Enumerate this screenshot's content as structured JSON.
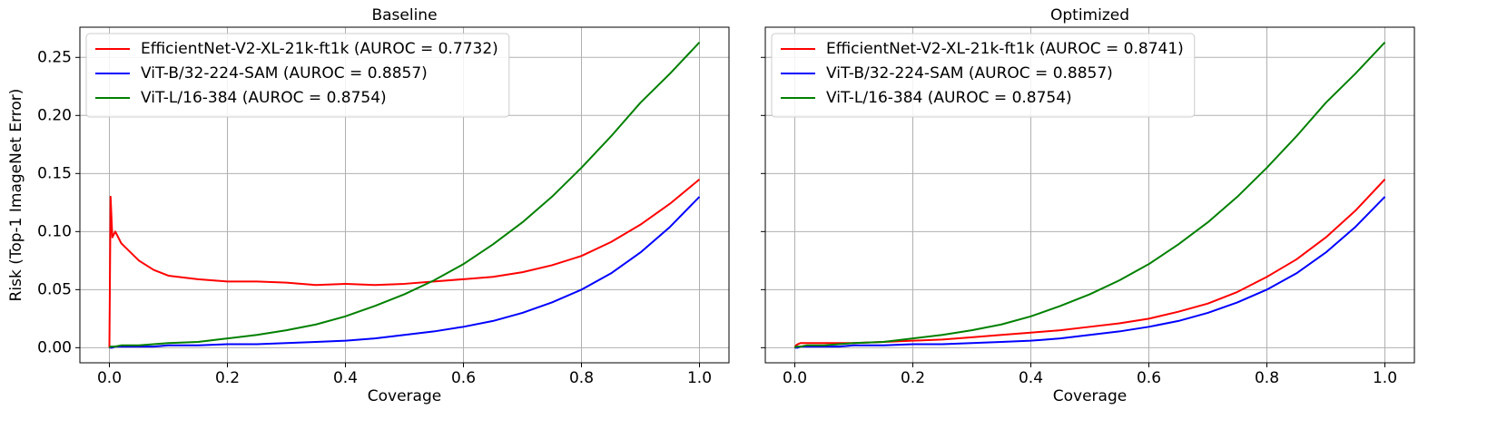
{
  "chart_data": [
    {
      "type": "line",
      "title": "Baseline",
      "xlabel": "Coverage",
      "ylabel": "Risk (Top-1 ImageNet Error)",
      "x": [
        0,
        0.002,
        0.005,
        0.01,
        0.02,
        0.03,
        0.05,
        0.075,
        0.1,
        0.15,
        0.2,
        0.25,
        0.3,
        0.35,
        0.4,
        0.45,
        0.5,
        0.55,
        0.6,
        0.65,
        0.7,
        0.75,
        0.8,
        0.85,
        0.9,
        0.95,
        1.0
      ],
      "series": [
        {
          "name": "EfficientNet-V2-XL-21k-ft1k (AUROC = 0.7732)",
          "color": "#ff0000",
          "values": [
            0,
            0.13,
            0.095,
            0.1,
            0.09,
            0.085,
            0.075,
            0.067,
            0.062,
            0.059,
            0.057,
            0.057,
            0.056,
            0.054,
            0.055,
            0.054,
            0.055,
            0.057,
            0.059,
            0.061,
            0.065,
            0.071,
            0.079,
            0.091,
            0.106,
            0.124,
            0.145
          ]
        },
        {
          "name": "ViT-B/32-224-SAM (AUROC = 0.8857)",
          "color": "#0000ff",
          "values": [
            0,
            0,
            0,
            0.001,
            0.001,
            0.001,
            0.001,
            0.001,
            0.002,
            0.002,
            0.003,
            0.003,
            0.004,
            0.005,
            0.006,
            0.008,
            0.011,
            0.014,
            0.018,
            0.023,
            0.03,
            0.039,
            0.05,
            0.064,
            0.082,
            0.104,
            0.13
          ]
        },
        {
          "name": "ViT-L/16-384 (AUROC = 0.8754)",
          "color": "#008000",
          "values": [
            0,
            0.001,
            0.001,
            0.001,
            0.002,
            0.002,
            0.002,
            0.003,
            0.004,
            0.005,
            0.008,
            0.011,
            0.015,
            0.02,
            0.027,
            0.036,
            0.046,
            0.058,
            0.072,
            0.089,
            0.108,
            0.13,
            0.155,
            0.182,
            0.211,
            0.236,
            0.263
          ]
        }
      ],
      "xlim": [
        -0.05,
        1.05
      ],
      "ylim": [
        -0.013,
        0.276
      ],
      "xticks": [
        {
          "value": 0,
          "label": "0.0"
        },
        {
          "value": 0.2,
          "label": "0.2"
        },
        {
          "value": 0.4,
          "label": "0.4"
        },
        {
          "value": 0.6,
          "label": "0.6"
        },
        {
          "value": 0.8,
          "label": "0.8"
        },
        {
          "value": 1,
          "label": "1.0"
        }
      ],
      "yticks": [
        {
          "value": 0,
          "label": "0.00"
        },
        {
          "value": 0.05,
          "label": "0.05"
        },
        {
          "value": 0.1,
          "label": "0.10"
        },
        {
          "value": 0.15,
          "label": "0.15"
        },
        {
          "value": 0.2,
          "label": "0.20"
        },
        {
          "value": 0.25,
          "label": "0.25"
        }
      ],
      "grid": true,
      "legend": "upper-left"
    },
    {
      "type": "line",
      "title": "Optimized",
      "xlabel": "Coverage",
      "x": [
        0,
        0.002,
        0.005,
        0.01,
        0.02,
        0.03,
        0.05,
        0.075,
        0.1,
        0.15,
        0.2,
        0.25,
        0.3,
        0.35,
        0.4,
        0.45,
        0.5,
        0.55,
        0.6,
        0.65,
        0.7,
        0.75,
        0.8,
        0.85,
        0.9,
        0.95,
        1.0
      ],
      "series": [
        {
          "name": "EfficientNet-V2-XL-21k-ft1k (AUROC = 0.8741)",
          "color": "#ff0000",
          "values": [
            0,
            0.002,
            0.003,
            0.004,
            0.004,
            0.004,
            0.004,
            0.004,
            0.004,
            0.005,
            0.006,
            0.007,
            0.009,
            0.011,
            0.013,
            0.015,
            0.018,
            0.021,
            0.025,
            0.031,
            0.038,
            0.048,
            0.061,
            0.076,
            0.095,
            0.118,
            0.145
          ]
        },
        {
          "name": "ViT-B/32-224-SAM (AUROC = 0.8857)",
          "color": "#0000ff",
          "values": [
            0,
            0,
            0,
            0.001,
            0.001,
            0.001,
            0.001,
            0.001,
            0.002,
            0.002,
            0.003,
            0.003,
            0.004,
            0.005,
            0.006,
            0.008,
            0.011,
            0.014,
            0.018,
            0.023,
            0.03,
            0.039,
            0.05,
            0.064,
            0.082,
            0.104,
            0.13
          ]
        },
        {
          "name": "ViT-L/16-384 (AUROC = 0.8754)",
          "color": "#008000",
          "values": [
            0,
            0.001,
            0.001,
            0.001,
            0.002,
            0.002,
            0.002,
            0.003,
            0.004,
            0.005,
            0.008,
            0.011,
            0.015,
            0.02,
            0.027,
            0.036,
            0.046,
            0.058,
            0.072,
            0.089,
            0.108,
            0.13,
            0.155,
            0.182,
            0.211,
            0.236,
            0.263
          ]
        }
      ],
      "xlim": [
        -0.05,
        1.05
      ],
      "ylim": [
        -0.013,
        0.276
      ],
      "xticks": [
        {
          "value": 0,
          "label": "0.0"
        },
        {
          "value": 0.2,
          "label": "0.2"
        },
        {
          "value": 0.4,
          "label": "0.4"
        },
        {
          "value": 0.6,
          "label": "0.6"
        },
        {
          "value": 0.8,
          "label": "0.8"
        },
        {
          "value": 1,
          "label": "1.0"
        }
      ],
      "yticks": [
        0,
        0.05,
        0.1,
        0.15,
        0.2,
        0.25
      ],
      "grid": true,
      "legend": "upper-left"
    }
  ]
}
